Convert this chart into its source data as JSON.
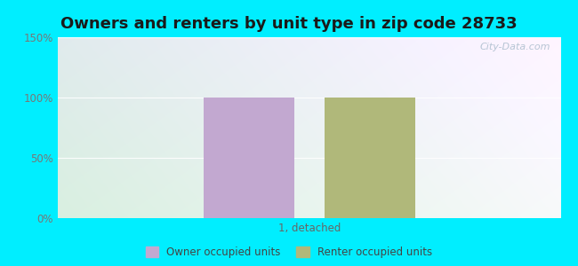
{
  "title": "Owners and renters by unit type in zip code 28733",
  "categories": [
    "1, detached"
  ],
  "owner_values": [
    100
  ],
  "renter_values": [
    100
  ],
  "owner_color": "#c2a8d0",
  "renter_color": "#b0b87a",
  "ylim": [
    0,
    150
  ],
  "yticks": [
    0,
    50,
    100,
    150
  ],
  "ytick_labels": [
    "0%",
    "50%",
    "100%",
    "150%"
  ],
  "outer_bg": "#00eeff",
  "watermark": "City-Data.com",
  "legend_owner": "Owner occupied units",
  "legend_renter": "Renter occupied units",
  "bar_width": 0.18,
  "title_fontsize": 13,
  "tick_color": "#777777",
  "xlabel_color": "#666666"
}
